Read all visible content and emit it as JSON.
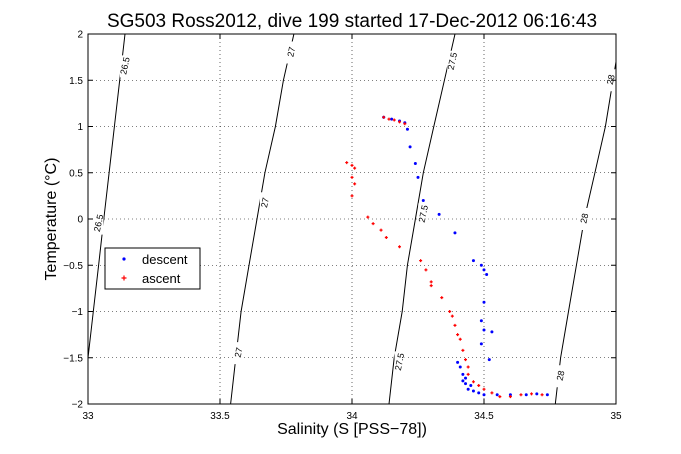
{
  "chart_data": {
    "type": "scatter",
    "title": "SG503 Ross2012, dive 199 started 17-Dec-2012 06:16:43",
    "xlabel": "Salinity (S [PSS−78])",
    "ylabel": "Temperature (°C)",
    "xlim": [
      33,
      35
    ],
    "ylim": [
      -2,
      2
    ],
    "x_ticks": [
      33,
      33.5,
      34,
      34.5,
      35
    ],
    "x_tick_labels": [
      "33",
      "33.5",
      "34",
      "34.5",
      "35"
    ],
    "y_ticks": [
      -2,
      -1.5,
      -1,
      -0.5,
      0,
      0.5,
      1,
      1.5,
      2
    ],
    "y_tick_labels": [
      "−2",
      "−1.5",
      "−1",
      "−0.5",
      "0",
      "0.5",
      "1",
      "1.5",
      "2"
    ],
    "grid": true,
    "legend_position": "left",
    "series": [
      {
        "name": "descent",
        "color": "#0000ff",
        "marker": "dot",
        "points": [
          [
            34.12,
            1.1
          ],
          [
            34.15,
            1.08
          ],
          [
            34.18,
            1.06
          ],
          [
            34.2,
            1.04
          ],
          [
            34.21,
            0.97
          ],
          [
            34.22,
            0.78
          ],
          [
            34.24,
            0.6
          ],
          [
            34.25,
            0.45
          ],
          [
            34.27,
            0.2
          ],
          [
            34.33,
            0.05
          ],
          [
            34.39,
            -0.15
          ],
          [
            34.46,
            -0.45
          ],
          [
            34.49,
            -0.5
          ],
          [
            34.5,
            -0.55
          ],
          [
            34.51,
            -0.6
          ],
          [
            34.5,
            -0.9
          ],
          [
            34.49,
            -1.1
          ],
          [
            34.5,
            -1.2
          ],
          [
            34.49,
            -1.35
          ],
          [
            34.53,
            -1.22
          ],
          [
            34.52,
            -1.52
          ],
          [
            34.4,
            -1.55
          ],
          [
            34.41,
            -1.6
          ],
          [
            34.42,
            -1.68
          ],
          [
            34.43,
            -1.72
          ],
          [
            34.42,
            -1.75
          ],
          [
            34.43,
            -1.78
          ],
          [
            34.45,
            -1.8
          ],
          [
            34.44,
            -1.84
          ],
          [
            34.46,
            -1.86
          ],
          [
            34.48,
            -1.88
          ],
          [
            34.5,
            -1.9
          ],
          [
            34.55,
            -1.9
          ],
          [
            34.6,
            -1.9
          ],
          [
            34.66,
            -1.9
          ],
          [
            34.7,
            -1.89
          ],
          [
            34.74,
            -1.9
          ]
        ]
      },
      {
        "name": "ascent",
        "color": "#ff0000",
        "marker": "plus",
        "points": [
          [
            34.12,
            1.1
          ],
          [
            34.14,
            1.08
          ],
          [
            34.16,
            1.07
          ],
          [
            34.18,
            1.05
          ],
          [
            34.2,
            1.03
          ],
          [
            33.98,
            0.61
          ],
          [
            34.0,
            0.58
          ],
          [
            34.01,
            0.55
          ],
          [
            34.0,
            0.45
          ],
          [
            34.01,
            0.38
          ],
          [
            34.0,
            0.25
          ],
          [
            34.06,
            0.02
          ],
          [
            34.08,
            -0.05
          ],
          [
            34.11,
            -0.12
          ],
          [
            34.13,
            -0.2
          ],
          [
            34.18,
            -0.3
          ],
          [
            34.26,
            -0.45
          ],
          [
            34.28,
            -0.55
          ],
          [
            34.3,
            -0.68
          ],
          [
            34.3,
            -0.72
          ],
          [
            34.34,
            -0.85
          ],
          [
            34.37,
            -1.0
          ],
          [
            34.38,
            -1.05
          ],
          [
            34.39,
            -1.15
          ],
          [
            34.4,
            -1.25
          ],
          [
            34.41,
            -1.3
          ],
          [
            34.42,
            -1.42
          ],
          [
            34.43,
            -1.52
          ],
          [
            34.44,
            -1.6
          ],
          [
            34.44,
            -1.68
          ],
          [
            34.46,
            -1.76
          ],
          [
            34.48,
            -1.8
          ],
          [
            34.5,
            -1.84
          ],
          [
            34.53,
            -1.88
          ],
          [
            34.56,
            -1.92
          ],
          [
            34.6,
            -1.92
          ],
          [
            34.64,
            -1.9
          ],
          [
            34.68,
            -1.89
          ],
          [
            34.72,
            -1.9
          ]
        ]
      }
    ],
    "contours": [
      {
        "label": "26.5",
        "points": [
          [
            33.14,
            2
          ],
          [
            33.12,
            1.5
          ],
          [
            33.1,
            1.0
          ],
          [
            33.08,
            0.5
          ],
          [
            33.06,
            0
          ],
          [
            33.04,
            -0.5
          ],
          [
            33.02,
            -1.0
          ],
          [
            33.0,
            -1.5
          ]
        ],
        "label_positions": [
          [
            33.14,
            1.65
          ],
          [
            33.04,
            -0.05
          ]
        ]
      },
      {
        "label": "27",
        "points": [
          [
            33.78,
            2
          ],
          [
            33.74,
            1.5
          ],
          [
            33.71,
            1.0
          ],
          [
            33.67,
            0.5
          ],
          [
            33.64,
            0
          ],
          [
            33.61,
            -0.5
          ],
          [
            33.58,
            -1.0
          ],
          [
            33.56,
            -1.5
          ],
          [
            33.54,
            -2
          ]
        ],
        "label_positions": [
          [
            33.77,
            1.8
          ],
          [
            33.67,
            0.17
          ],
          [
            33.57,
            -1.45
          ]
        ]
      },
      {
        "label": "27.5",
        "points": [
          [
            34.39,
            2
          ],
          [
            34.35,
            1.5
          ],
          [
            34.31,
            1.0
          ],
          [
            34.27,
            0.5
          ],
          [
            34.24,
            0
          ],
          [
            34.21,
            -0.5
          ],
          [
            34.19,
            -1.0
          ],
          [
            34.16,
            -1.5
          ],
          [
            34.14,
            -2
          ]
        ],
        "label_positions": [
          [
            34.38,
            1.7
          ],
          [
            34.27,
            0.05
          ],
          [
            34.18,
            -1.55
          ]
        ]
      },
      {
        "label": "28",
        "points": [
          [
            35.0,
            1.7
          ],
          [
            34.96,
            1.0
          ],
          [
            34.92,
            0.5
          ],
          [
            34.88,
            0
          ],
          [
            34.85,
            -0.5
          ],
          [
            34.82,
            -1.0
          ],
          [
            34.79,
            -1.5
          ],
          [
            34.77,
            -2
          ]
        ],
        "label_positions": [
          [
            34.98,
            1.5
          ],
          [
            34.88,
            0.0
          ],
          [
            34.79,
            -1.7
          ]
        ]
      }
    ]
  }
}
